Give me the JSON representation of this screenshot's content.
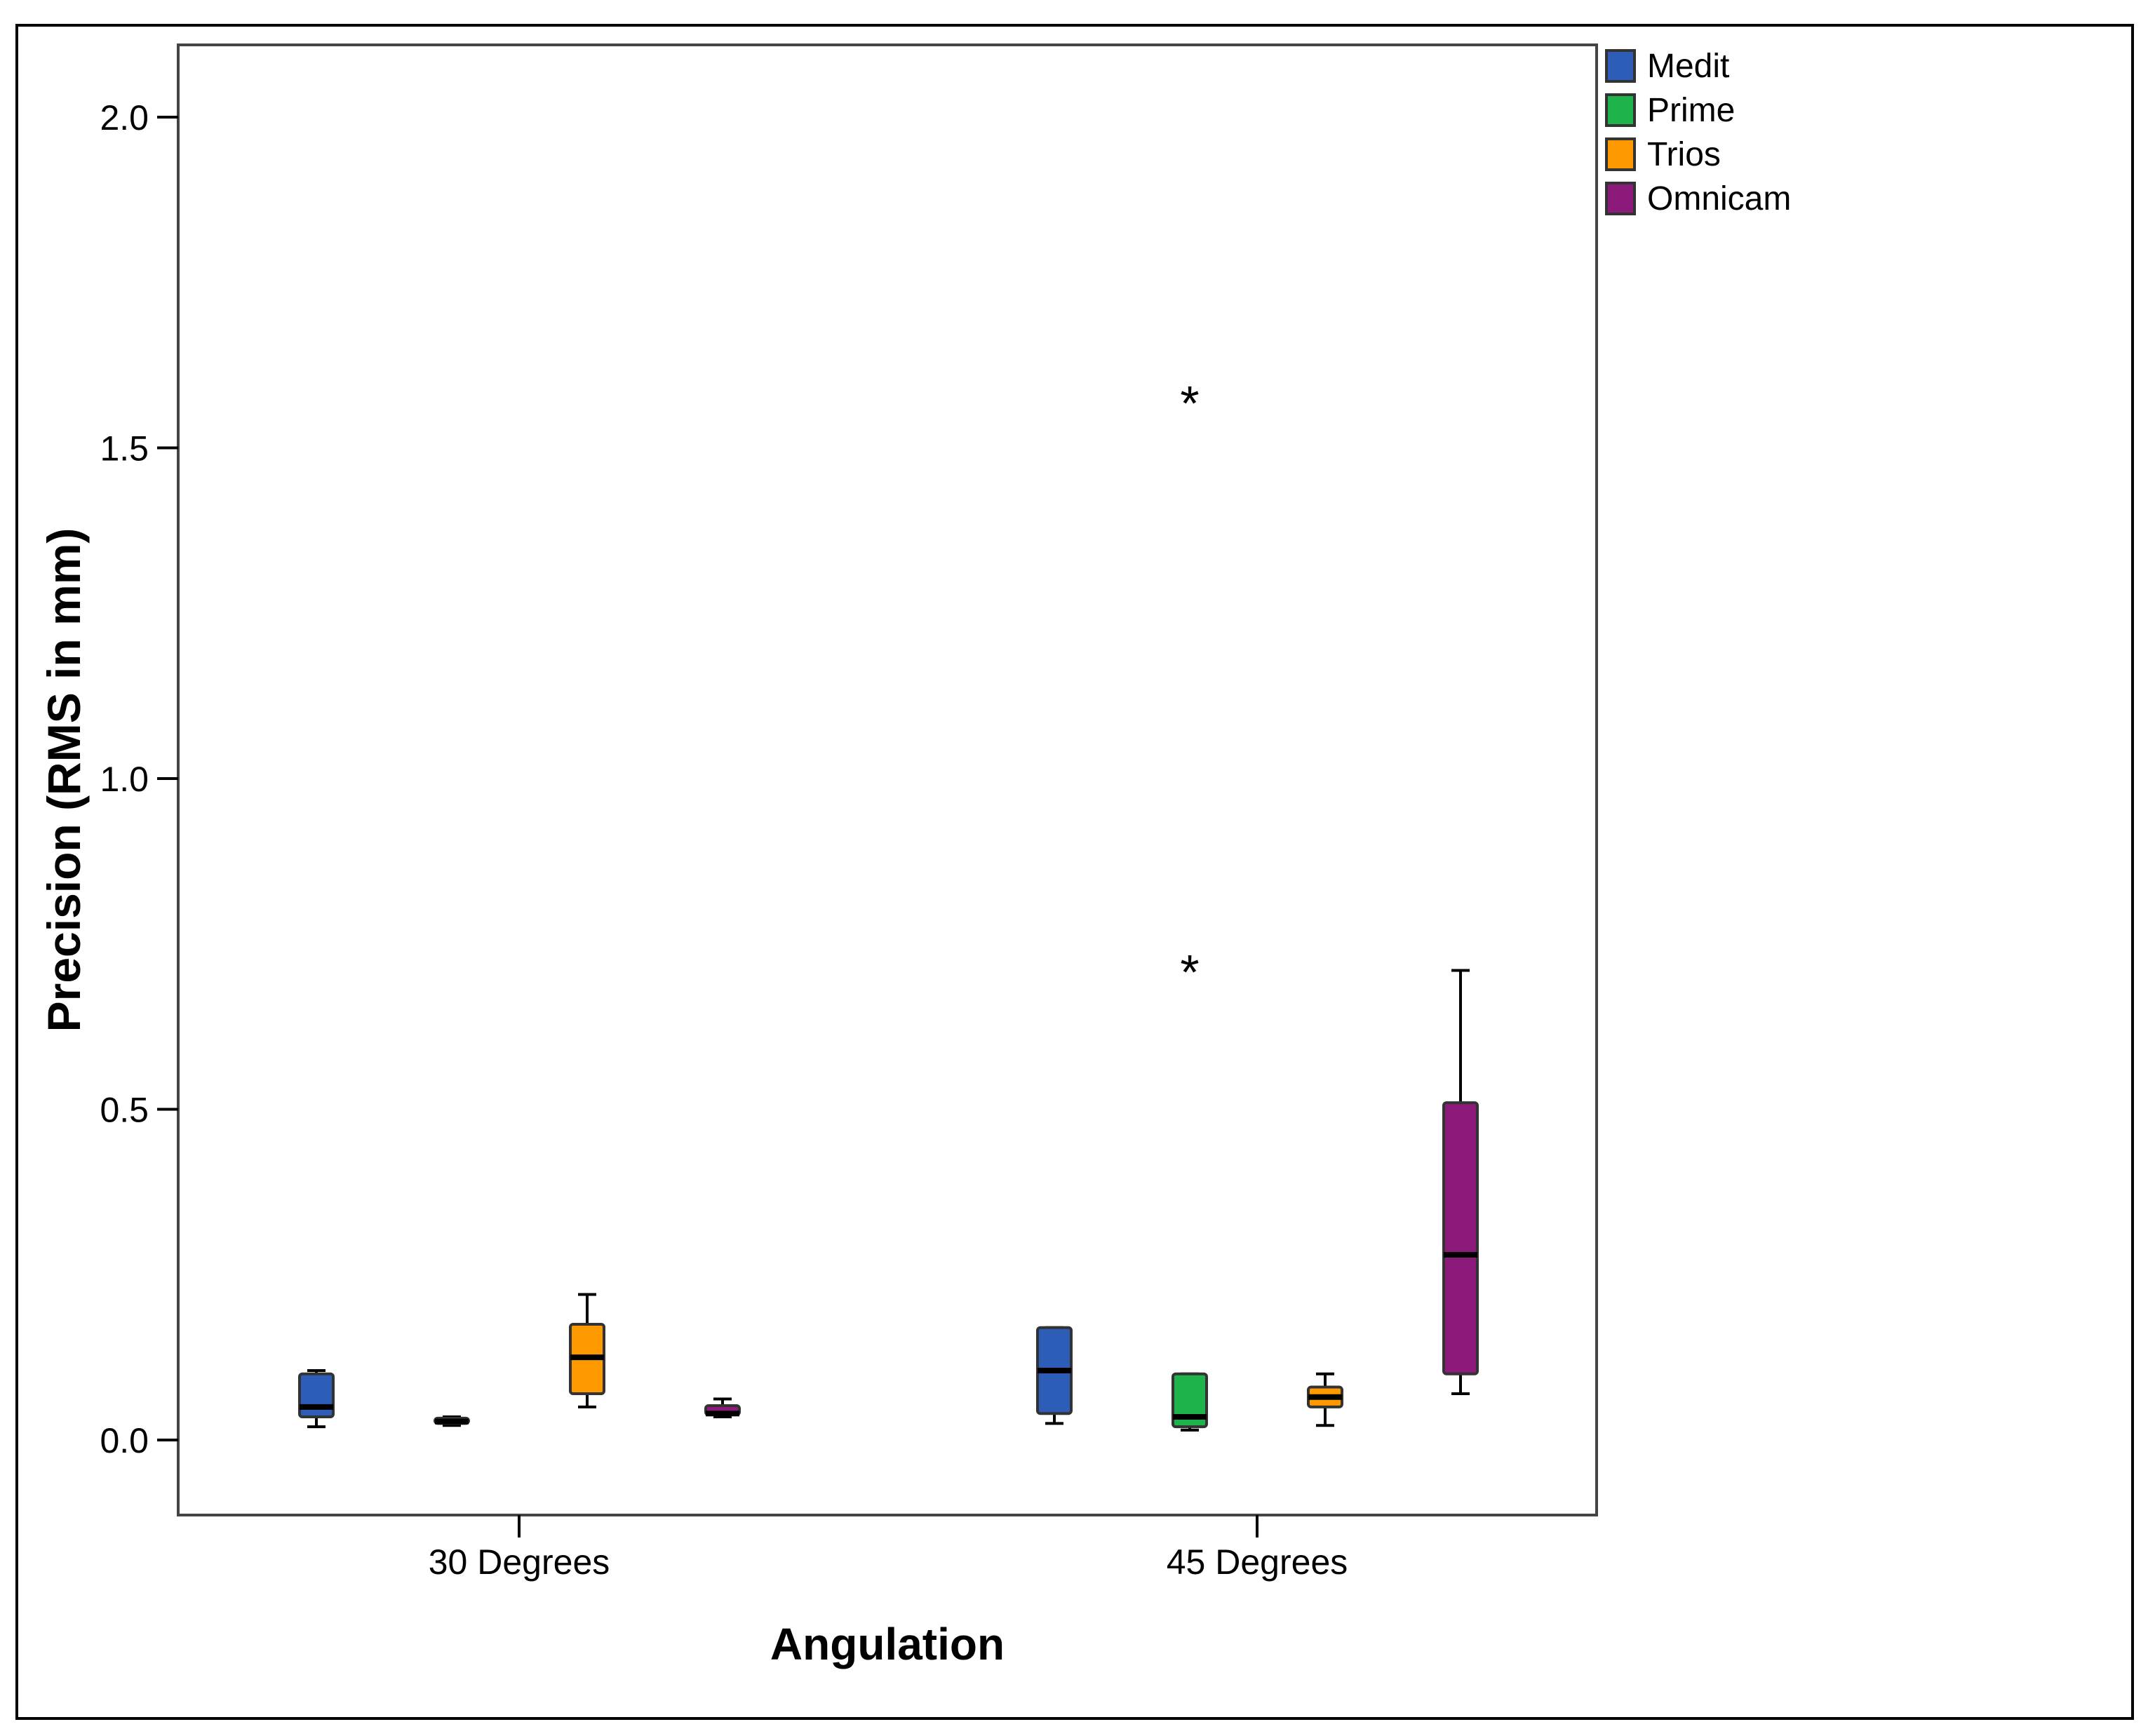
{
  "chart_data": {
    "type": "boxplot",
    "title": "",
    "xlabel": "Angulation",
    "ylabel": "Precision (RMS in mm)",
    "ylim": [
      -0.11,
      2.11
    ],
    "yticks": [
      0.0,
      0.5,
      1.0,
      1.5,
      2.0
    ],
    "ytick_labels": [
      "0.0",
      "0.5",
      "1.0",
      "1.5",
      "2.0"
    ],
    "categories": [
      "30 Degrees",
      "45 Degrees"
    ],
    "legend_position": "outside-right-top",
    "series": [
      {
        "name": "Medit",
        "color": "#2e5db8",
        "boxes": [
          {
            "min": 0.02,
            "q1": 0.035,
            "median": 0.05,
            "q3": 0.1,
            "max": 0.105,
            "outliers": []
          },
          {
            "min": 0.025,
            "q1": 0.04,
            "median": 0.105,
            "q3": 0.17,
            "max": 0.17,
            "outliers": []
          }
        ]
      },
      {
        "name": "Prime",
        "color": "#1eb44b",
        "boxes": [
          {
            "min": 0.022,
            "q1": 0.025,
            "median": 0.028,
            "q3": 0.033,
            "max": 0.035,
            "outliers": []
          },
          {
            "min": 0.015,
            "q1": 0.02,
            "median": 0.035,
            "q3": 0.1,
            "max": 0.1,
            "outliers": [
              0.72,
              1.58
            ]
          }
        ]
      },
      {
        "name": "Trios",
        "color": "#ff9900",
        "boxes": [
          {
            "min": 0.05,
            "q1": 0.07,
            "median": 0.125,
            "q3": 0.175,
            "max": 0.22,
            "outliers": []
          },
          {
            "min": 0.022,
            "q1": 0.05,
            "median": 0.065,
            "q3": 0.08,
            "max": 0.1,
            "outliers": []
          }
        ]
      },
      {
        "name": "Omnicam",
        "color": "#8b1a7a",
        "boxes": [
          {
            "min": 0.035,
            "q1": 0.038,
            "median": 0.04,
            "q3": 0.052,
            "max": 0.062,
            "outliers": []
          },
          {
            "min": 0.07,
            "q1": 0.1,
            "median": 0.28,
            "q3": 0.51,
            "max": 0.71,
            "outliers": []
          }
        ]
      }
    ]
  }
}
